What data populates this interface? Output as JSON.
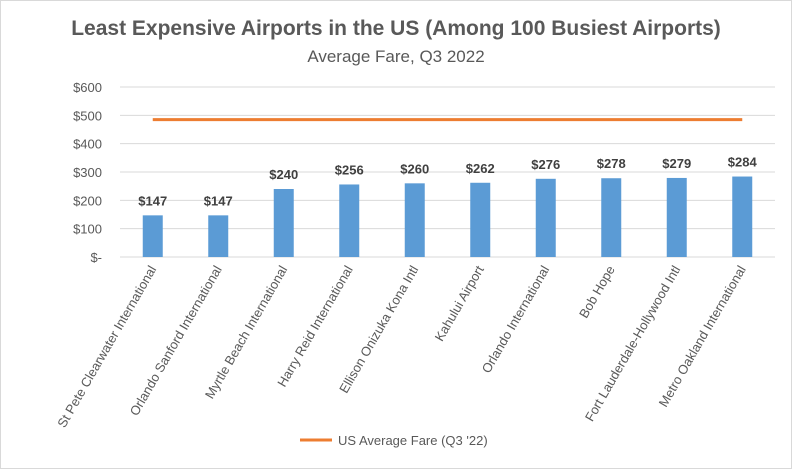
{
  "chart_data": {
    "type": "bar",
    "title": "Least Expensive Airports in the US (Among 100 Busiest Airports)",
    "subtitle": "Average Fare, Q3 2022",
    "categories": [
      "St Pete Clearwater International",
      "Orlando Sanford International",
      "Myrtle Beach International",
      "Harry Reid International",
      "Ellison Onizuka Kona Intl",
      "Kahului Airport",
      "Orlando International",
      "Bob Hope",
      "Fort Lauderdale-Hollywood Intl",
      "Metro Oakland International"
    ],
    "values": [
      147,
      147,
      240,
      256,
      260,
      262,
      276,
      278,
      279,
      284
    ],
    "data_labels": [
      "$147",
      "$147",
      "$240",
      "$256",
      "$260",
      "$262",
      "$276",
      "$278",
      "$279",
      "$284"
    ],
    "reference_line": {
      "name": "US Average Fare (Q3 '22)",
      "value": 485,
      "color": "#ed7d31"
    },
    "bar_color": "#5b9bd5",
    "ylim": [
      0,
      600
    ],
    "yticks": [
      0,
      100,
      200,
      300,
      400,
      500,
      600
    ],
    "ytick_labels": [
      "$-",
      "$100",
      "$200",
      "$300",
      "$400",
      "$500",
      "$600"
    ],
    "grid": true,
    "legend_position": "bottom"
  }
}
